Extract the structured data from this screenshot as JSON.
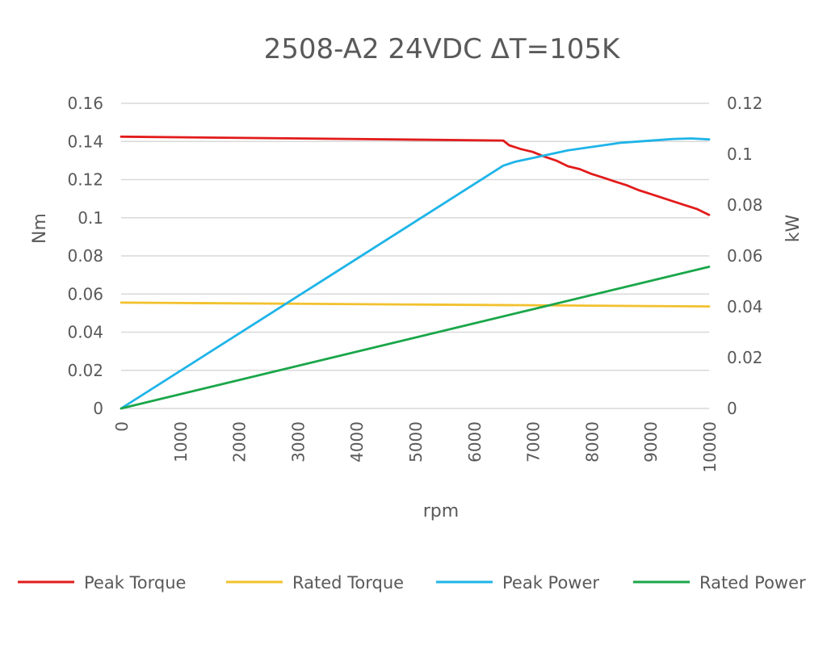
{
  "chart_data": {
    "type": "line",
    "title": "2508-A2 24VDC ΔT=105K",
    "xlabel": "rpm",
    "ylabel_left": "Nm",
    "ylabel_right": "kW",
    "x_ticks": [
      "0",
      "1000",
      "2000",
      "3000",
      "4000",
      "5000",
      "6000",
      "7000",
      "8000",
      "9000",
      "10000"
    ],
    "xlim": [
      0,
      10000
    ],
    "y_left_ticks": [
      "0",
      "0.02",
      "0.04",
      "0.06",
      "0.08",
      "0.1",
      "0.12",
      "0.14",
      "0.16"
    ],
    "ylim_left": [
      0,
      0.16
    ],
    "y_right_ticks": [
      "0",
      "0.02",
      "0.04",
      "0.06",
      "0.08",
      "0.1",
      "0.12"
    ],
    "ylim_right": [
      0,
      0.12
    ],
    "grid": "horizontal",
    "legend_position": "bottom",
    "legend": [
      {
        "name": "Peak Torque",
        "color": "#E21B1B"
      },
      {
        "name": "Rated Torque",
        "color": "#F2C12E"
      },
      {
        "name": "Peak Power",
        "color": "#1EB4E8"
      },
      {
        "name": "Rated Power",
        "color": "#1AA64A"
      }
    ],
    "series": [
      {
        "name": "Peak Torque",
        "axis": "left",
        "color": "#E21B1B",
        "x": [
          0,
          6500,
          6600,
          6800,
          7000,
          7200,
          7400,
          7600,
          7800,
          8000,
          8200,
          8400,
          8600,
          8800,
          9000,
          9200,
          9400,
          9600,
          9800,
          10000
        ],
        "y": [
          0.1425,
          0.1405,
          0.138,
          0.136,
          0.1345,
          0.132,
          0.13,
          0.127,
          0.1255,
          0.123,
          0.121,
          0.119,
          0.117,
          0.1145,
          0.1125,
          0.1105,
          0.1085,
          0.1065,
          0.1045,
          0.1015
        ]
      },
      {
        "name": "Rated Torque",
        "axis": "left",
        "color": "#F2C12E",
        "x": [
          0,
          10000
        ],
        "y": [
          0.0555,
          0.0535
        ]
      },
      {
        "name": "Peak Power",
        "axis": "right",
        "color": "#1EB4E8",
        "x": [
          0,
          6500,
          6700,
          7000,
          7300,
          7600,
          7900,
          8200,
          8500,
          8800,
          9100,
          9400,
          9700,
          10000
        ],
        "y": [
          0,
          0.0955,
          0.097,
          0.0985,
          0.1,
          0.1015,
          0.1025,
          0.1035,
          0.1045,
          0.105,
          0.1055,
          0.106,
          0.1062,
          0.1058
        ]
      },
      {
        "name": "Rated Power",
        "axis": "right",
        "color": "#1AA64A",
        "x": [
          0,
          10000
        ],
        "y": [
          0,
          0.0557
        ]
      }
    ]
  }
}
